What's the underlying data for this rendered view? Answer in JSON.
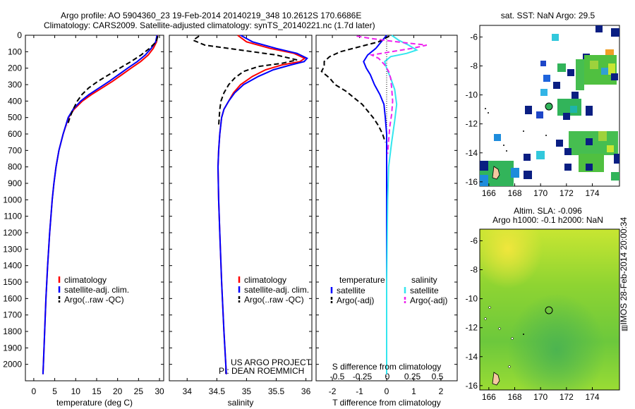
{
  "header": {
    "line1": "Argo profile: AO 5904360_23 19-Feb-2014 20140219_348 10.2612S 170.6686E",
    "line2": "Climatology: CARS2009. Satellite-adjusted climatology: synTS_20140221.nc (1.7d later)"
  },
  "sst_map": {
    "title": "sat. SST: NaN Argo: 29.5",
    "xticks": [
      "166",
      "168",
      "170",
      "172",
      "174"
    ],
    "yticks": [
      "-6",
      "-8",
      "-10",
      "-12",
      "-14",
      "-16"
    ]
  },
  "sla_map": {
    "title1": "Altim. SLA: -0.096",
    "title2": "Argo h1000: -0.1 h2000: NaN",
    "xticks": [
      "166",
      "168",
      "170",
      "172",
      "174"
    ],
    "yticks": [
      "-6",
      "-8",
      "-10",
      "-12",
      "-14",
      "-16"
    ]
  },
  "side_label": "IMOS 28-Feb-2014 20:00:34",
  "credit": {
    "line1": "US ARGO PROJECT",
    "line2": "PI: DEAN ROEMMICH"
  },
  "colors": {
    "climatology": "#ff0000",
    "satellite": "#0000ff",
    "argo": "#000000",
    "sat_salinity": "#33e6ee",
    "argo_salinity": "#ee22ee"
  },
  "chart_data": [
    {
      "type": "line",
      "xlabel": "temperature (deg C)",
      "ylabel": "",
      "xlim": [
        -2,
        31
      ],
      "ylim": [
        2100,
        0
      ],
      "xticks": [
        0,
        5,
        10,
        15,
        20,
        25,
        30
      ],
      "yticks": [
        0,
        100,
        200,
        300,
        400,
        500,
        600,
        700,
        800,
        900,
        1000,
        1100,
        1200,
        1300,
        1400,
        1500,
        1600,
        1700,
        1800,
        1900,
        2000
      ],
      "legend": [
        "climatology",
        "satellite-adj. clim.",
        "Argo(..raw -QC)"
      ],
      "series": [
        {
          "name": "climatology",
          "depth": [
            0,
            40,
            80,
            120,
            160,
            200,
            240,
            280,
            320,
            360,
            400,
            450,
            500,
            600,
            700,
            800,
            900,
            1000,
            1200,
            1400,
            1600,
            1800,
            2000,
            2060
          ],
          "values": [
            29.5,
            29.3,
            28.5,
            27.3,
            25.5,
            23.2,
            21.0,
            18.8,
            16.3,
            13.8,
            11.6,
            9.6,
            8.3,
            7.0,
            6.0,
            5.3,
            4.8,
            4.4,
            3.8,
            3.3,
            2.9,
            2.6,
            2.3,
            2.2
          ]
        },
        {
          "name": "satellite-adj. clim.",
          "depth": [
            0,
            40,
            80,
            120,
            160,
            200,
            240,
            280,
            320,
            360,
            400,
            450,
            500,
            600,
            700,
            800,
            900,
            1000,
            1200,
            1400,
            1600,
            1800,
            2000,
            2060
          ],
          "values": [
            29.4,
            29.1,
            28.0,
            26.6,
            24.7,
            22.4,
            20.2,
            18.0,
            15.6,
            13.2,
            11.2,
            9.4,
            8.2,
            7.0,
            6.0,
            5.3,
            4.8,
            4.4,
            3.8,
            3.3,
            2.9,
            2.6,
            2.3,
            2.2
          ]
        },
        {
          "name": "Argo(..raw -QC)",
          "depth": [
            5,
            40,
            80,
            120,
            160,
            200,
            240,
            280,
            320,
            360,
            400,
            450,
            500,
            550
          ],
          "values": [
            29.6,
            29.2,
            27.6,
            25.6,
            23.2,
            20.5,
            17.9,
            15.3,
            13.1,
            11.5,
            10.4,
            9.4,
            8.6,
            8.0
          ]
        }
      ]
    },
    {
      "type": "line",
      "xlabel": "salinity",
      "ylabel": "",
      "xlim": [
        33.7,
        36.1
      ],
      "ylim": [
        2100,
        0
      ],
      "xticks": [
        34,
        34.5,
        35,
        35.5,
        36
      ],
      "xticklabels": [
        "34",
        "34.5",
        "35",
        "35.5",
        "36"
      ],
      "legend": [
        "climatology",
        "satellite-adj. clim.",
        "Argo(..raw -QC)"
      ],
      "series": [
        {
          "name": "climatology",
          "depth": [
            0,
            40,
            80,
            110,
            140,
            160,
            180,
            210,
            250,
            300,
            350,
            400,
            450,
            500,
            600,
            700,
            800,
            1000,
            1200,
            1500,
            1800,
            2060
          ],
          "values": [
            34.85,
            35.0,
            35.4,
            35.8,
            35.98,
            35.9,
            35.6,
            35.32,
            35.1,
            34.9,
            34.78,
            34.7,
            34.62,
            34.58,
            34.55,
            34.53,
            34.52,
            34.53,
            34.55,
            34.58,
            34.62,
            34.66
          ]
        },
        {
          "name": "satellite-adj. clim.",
          "depth": [
            0,
            40,
            80,
            110,
            140,
            160,
            180,
            210,
            250,
            300,
            350,
            400,
            450,
            500,
            600,
            700,
            800,
            1000,
            1200,
            1500,
            1800,
            2060
          ],
          "values": [
            34.9,
            35.1,
            35.5,
            35.85,
            36.02,
            35.97,
            35.75,
            35.45,
            35.2,
            34.95,
            34.8,
            34.7,
            34.62,
            34.58,
            34.55,
            34.53,
            34.52,
            34.53,
            34.55,
            34.58,
            34.62,
            34.66
          ]
        },
        {
          "name": "Argo(..raw -QC)",
          "depth": [
            5,
            30,
            60,
            90,
            120,
            150,
            170,
            190,
            220,
            260,
            300,
            350,
            400,
            450,
            500,
            550
          ],
          "values": [
            34.2,
            34.1,
            34.3,
            34.9,
            35.5,
            35.85,
            35.6,
            35.2,
            34.95,
            34.8,
            34.7,
            34.62,
            34.57,
            34.55,
            34.54,
            34.53
          ]
        }
      ]
    },
    {
      "type": "line",
      "xlabel": "T difference from climatology",
      "ylabel": "",
      "secondary_xlabel": "S difference from climatology",
      "xlim": [
        -2.6,
        2.6
      ],
      "ylim": [
        2100,
        0
      ],
      "xticks": [
        -2,
        -1,
        0,
        1,
        2
      ],
      "xticklabels": [
        "-2",
        "-1",
        "0",
        "1",
        "2"
      ],
      "secondary_xticks": [
        -0.5,
        -0.25,
        0,
        0.25,
        0.5
      ],
      "secondary_xticklabels": [
        "-0.5",
        "-0.25",
        "0",
        "0.25",
        "0.5"
      ],
      "legend_titles": [
        "temperature",
        "salinity"
      ],
      "legend": [
        "satellite",
        "Argo(-adj)",
        "satellite",
        "Argo(-adj)"
      ],
      "series": [
        {
          "name": "satellite",
          "group": "temperature",
          "depth": [
            0,
            40,
            80,
            120,
            160,
            200,
            240,
            300,
            360,
            420,
            500,
            600,
            800,
            1000,
            1500,
            2060
          ],
          "values": [
            0.0,
            -0.2,
            -0.4,
            -0.7,
            -0.85,
            -0.75,
            -0.6,
            -0.45,
            -0.25,
            -0.1,
            -0.05,
            0.0,
            0.0,
            0.0,
            0.0,
            0.0
          ]
        },
        {
          "name": "Argo(-adj)",
          "group": "temperature",
          "depth": [
            5,
            40,
            70,
            100,
            130,
            160,
            190,
            220,
            260,
            300,
            340,
            380,
            420,
            460,
            500,
            550,
            600,
            650
          ],
          "values": [
            0.1,
            -0.3,
            -1.0,
            -1.7,
            -2.1,
            -2.3,
            -2.3,
            -2.4,
            -2.1,
            -1.9,
            -1.5,
            -1.2,
            -0.9,
            -0.7,
            -0.5,
            -0.3,
            -0.15,
            -0.05
          ]
        },
        {
          "name": "satellite",
          "group": "salinity",
          "depth": [
            0,
            30,
            60,
            90,
            110,
            130,
            160,
            200,
            260,
            330,
            420,
            520,
            650,
            800,
            1000,
            1500,
            2060
          ],
          "values": [
            0.05,
            0.12,
            0.22,
            0.3,
            0.2,
            0.04,
            -0.02,
            0.0,
            0.04,
            0.08,
            0.1,
            0.08,
            0.05,
            0.02,
            0.01,
            0.0,
            0.0
          ]
        },
        {
          "name": "Argo(-adj)",
          "group": "salinity",
          "depth": [
            5,
            20,
            40,
            60,
            80,
            100,
            120,
            140,
            160,
            180,
            220,
            260,
            320,
            400,
            480,
            560,
            640,
            720
          ],
          "values": [
            -0.3,
            -0.15,
            0.1,
            0.4,
            0.25,
            0.05,
            -0.15,
            -0.08,
            -0.05,
            -0.02,
            0.02,
            0.04,
            0.05,
            0.06,
            0.05,
            0.03,
            0.02,
            0.01
          ]
        }
      ]
    }
  ]
}
